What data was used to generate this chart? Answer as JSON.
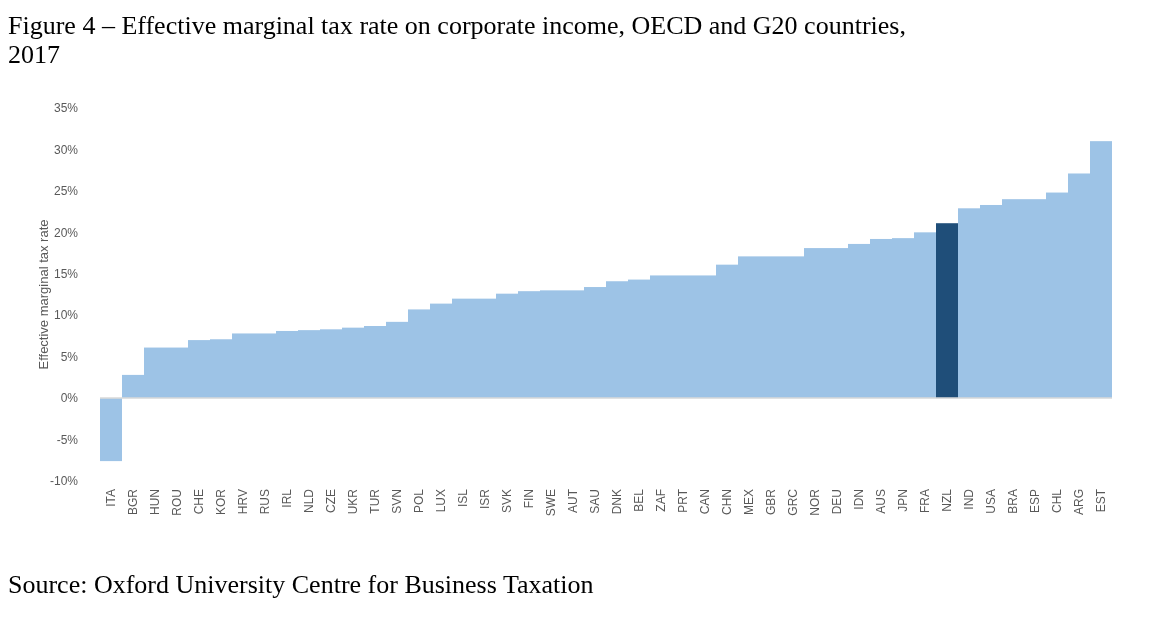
{
  "chart_data": {
    "type": "bar",
    "title": "Figure 4 –  Effective marginal tax rate on corporate income, OECD and G20 countries, 2017",
    "ylabel": "Effective marginal tax rate",
    "categories": [
      "ITA",
      "BGR",
      "HUN",
      "ROU",
      "CHE",
      "KOR",
      "HRV",
      "RUS",
      "IRL",
      "NLD",
      "CZE",
      "UKR",
      "TUR",
      "SVN",
      "POL",
      "LUX",
      "ISL",
      "ISR",
      "SVK",
      "FIN",
      "SWE",
      "AUT",
      "SAU",
      "DNK",
      "BEL",
      "ZAF",
      "PRT",
      "CAN",
      "CHN",
      "MEX",
      "GBR",
      "GRC",
      "NOR",
      "DEU",
      "IDN",
      "AUS",
      "JPN",
      "FRA",
      "NZL",
      "IND",
      "USA",
      "BRA",
      "ESP",
      "CHL",
      "ARG",
      "EST"
    ],
    "values": [
      -7.6,
      2.8,
      6.1,
      6.1,
      7.0,
      7.1,
      7.8,
      7.8,
      8.1,
      8.2,
      8.3,
      8.5,
      8.7,
      9.2,
      10.7,
      11.4,
      12.0,
      12.0,
      12.6,
      12.9,
      13.0,
      13.0,
      13.4,
      14.1,
      14.3,
      14.8,
      14.8,
      14.8,
      16.1,
      17.1,
      17.1,
      17.1,
      18.1,
      18.1,
      18.6,
      19.2,
      19.3,
      20.0,
      21.1,
      22.9,
      23.3,
      24.0,
      24.0,
      24.8,
      27.1,
      31.0
    ],
    "colors": [
      "#9dc3e6",
      "#9dc3e6",
      "#9dc3e6",
      "#9dc3e6",
      "#9dc3e6",
      "#9dc3e6",
      "#9dc3e6",
      "#9dc3e6",
      "#9dc3e6",
      "#9dc3e6",
      "#9dc3e6",
      "#9dc3e6",
      "#9dc3e6",
      "#9dc3e6",
      "#9dc3e6",
      "#9dc3e6",
      "#9dc3e6",
      "#9dc3e6",
      "#9dc3e6",
      "#9dc3e6",
      "#9dc3e6",
      "#9dc3e6",
      "#9dc3e6",
      "#9dc3e6",
      "#9dc3e6",
      "#9dc3e6",
      "#9dc3e6",
      "#9dc3e6",
      "#9dc3e6",
      "#9dc3e6",
      "#9dc3e6",
      "#9dc3e6",
      "#9dc3e6",
      "#9dc3e6",
      "#9dc3e6",
      "#9dc3e6",
      "#9dc3e6",
      "#9dc3e6",
      "#1f4e79",
      "#9dc3e6",
      "#9dc3e6",
      "#9dc3e6",
      "#9dc3e6",
      "#9dc3e6",
      "#9dc3e6",
      "#9dc3e6"
    ],
    "ylim": [
      -10,
      35
    ],
    "yticks": [
      {
        "value": -10,
        "label": "-10%"
      },
      {
        "value": -5,
        "label": "-5%"
      },
      {
        "value": 0,
        "label": "0%"
      },
      {
        "value": 5,
        "label": "5%"
      },
      {
        "value": 10,
        "label": "10%"
      },
      {
        "value": 15,
        "label": "15%"
      },
      {
        "value": 20,
        "label": "20%"
      },
      {
        "value": 25,
        "label": "25%"
      },
      {
        "value": 30,
        "label": "30%"
      },
      {
        "value": 35,
        "label": "35%"
      }
    ],
    "annotations": [
      "Source: Oxford University Centre for Business Taxation"
    ]
  }
}
